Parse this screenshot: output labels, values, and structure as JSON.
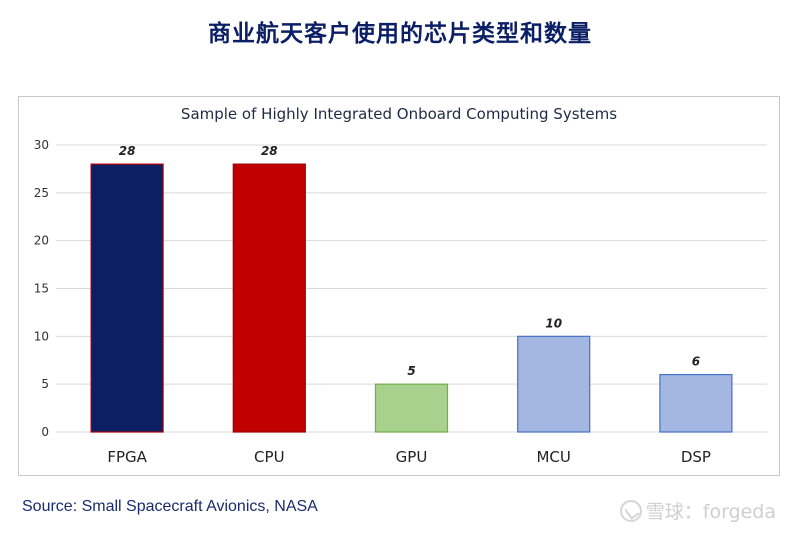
{
  "header": {
    "title": "商业航天客户使用的芯片类型和数量"
  },
  "footer": {
    "source": "Source: Small Spacecraft Avionics, NASA"
  },
  "watermark": {
    "text": "雪球：forgeda",
    "icon": "snowball-logo-icon"
  },
  "chart_data": {
    "type": "bar",
    "title": "Sample of Highly Integrated Onboard Computing Systems",
    "categories": [
      "FPGA",
      "CPU",
      "GPU",
      "MCU",
      "DSP"
    ],
    "values": [
      28,
      28,
      5,
      10,
      6
    ],
    "colors": [
      "#0c1f64",
      "#c00000",
      "#a9d18e",
      "#a4b6e2",
      "#a4b6e2"
    ],
    "edge_colors": [
      "#b00000",
      "#a00000",
      "#70ad47",
      "#4472c4",
      "#4472c4"
    ],
    "data_labels": [
      "28",
      "28",
      "5",
      "10",
      "6"
    ],
    "yticks": [
      "0",
      "5",
      "10",
      "15",
      "20",
      "25",
      "30"
    ],
    "ylim": [
      0,
      30
    ],
    "xlabel": "",
    "ylabel": "",
    "grid": true,
    "legend": "none"
  }
}
